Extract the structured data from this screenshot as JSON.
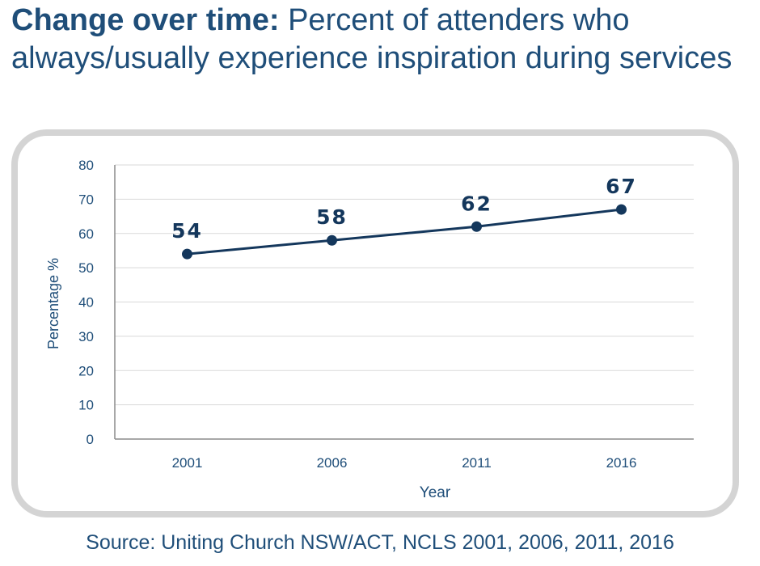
{
  "title": {
    "bold": "Change over time:",
    "rest": " Percent of attenders who always/usually experience inspiration during services"
  },
  "source": "Source: Uniting Church NSW/ACT, NCLS 2001, 2006, 2011, 2016",
  "colors": {
    "text": "#1f4e79",
    "line": "#14375c",
    "grid": "#d9d9d9",
    "frame": "#d4d4d4"
  },
  "chart_data": {
    "type": "line",
    "categories": [
      "2001",
      "2006",
      "2011",
      "2016"
    ],
    "series": [
      {
        "values": [
          54,
          58,
          62,
          67
        ]
      }
    ],
    "data_labels": [
      "54",
      "58",
      "62",
      "67"
    ],
    "xlabel": "Year",
    "ylabel": "Percentage %",
    "ylim": [
      0,
      80
    ],
    "yticks": [
      "0",
      "10",
      "20",
      "30",
      "40",
      "50",
      "60",
      "70",
      "80"
    ],
    "grid": true,
    "markers": true
  }
}
